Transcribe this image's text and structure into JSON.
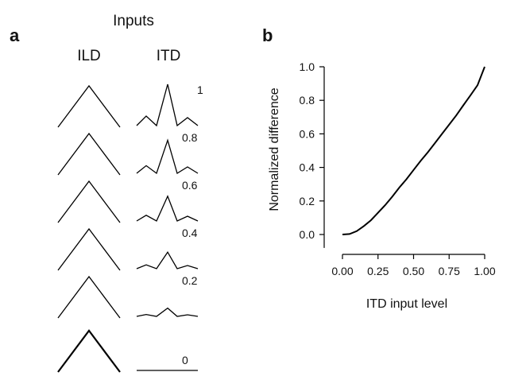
{
  "panel_a": {
    "label": "a",
    "title": "Inputs",
    "col_ild": "ILD",
    "col_itd": "ITD",
    "levels": [
      "1",
      "0.8",
      "0.6",
      "0.4",
      "0.2",
      "0"
    ]
  },
  "chart_data": {
    "type": "line",
    "panel_label": "b",
    "title": "",
    "xlabel": "ITD input level",
    "ylabel": "Normalized difference",
    "xlim": [
      0,
      1
    ],
    "ylim": [
      -0.08,
      1.0
    ],
    "xticks": [
      "0.00",
      "0.25",
      "0.50",
      "0.75",
      "1.00"
    ],
    "xtick_values": [
      0,
      0.25,
      0.5,
      0.75,
      1.0
    ],
    "yticks": [
      "0.0",
      "0.2",
      "0.4",
      "0.6",
      "0.8",
      "1.0"
    ],
    "ytick_values": [
      0,
      0.2,
      0.4,
      0.6,
      0.8,
      1.0
    ],
    "grid": false,
    "series": [
      {
        "x": [
          0,
          0.05,
          0.1,
          0.15,
          0.2,
          0.25,
          0.3,
          0.35,
          0.4,
          0.45,
          0.5,
          0.55,
          0.6,
          0.65,
          0.7,
          0.75,
          0.8,
          0.85,
          0.9,
          0.95,
          1.0
        ],
        "y": [
          0,
          0.003,
          0.02,
          0.05,
          0.085,
          0.13,
          0.175,
          0.225,
          0.28,
          0.33,
          0.385,
          0.44,
          0.49,
          0.545,
          0.6,
          0.655,
          0.71,
          0.77,
          0.83,
          0.89,
          1.0
        ]
      }
    ]
  }
}
